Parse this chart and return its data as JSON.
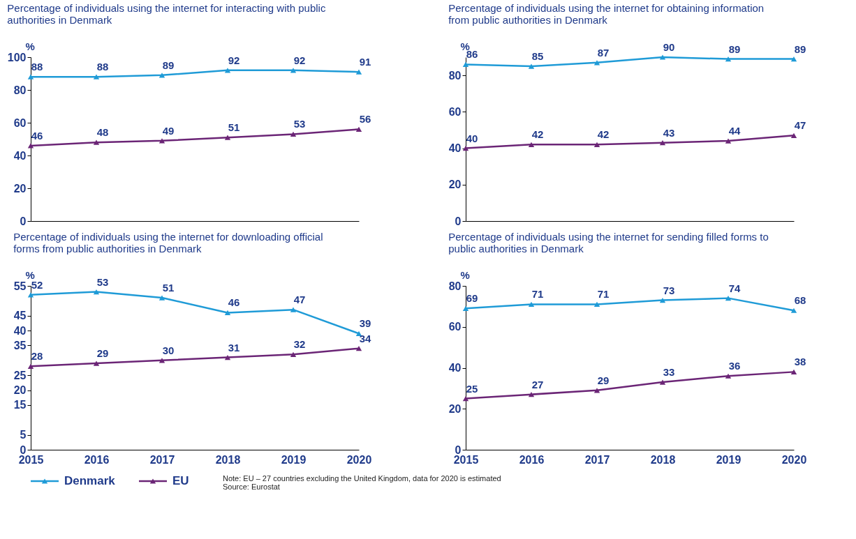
{
  "chart_data": [
    {
      "type": "line",
      "title": "Percentage of individuals using the internet for interacting with public authorities in Denmark",
      "ylabel": "%",
      "categories": [
        "2015",
        "2016",
        "2017",
        "2018",
        "2019",
        "2020"
      ],
      "ylim": [
        0,
        100
      ],
      "yticks": [
        0,
        20,
        40,
        60,
        80,
        100
      ],
      "tick_labels": "y",
      "marker": "triangle",
      "line_style": "solid",
      "data_labels": true,
      "grid": false,
      "legend": "bottom left",
      "series": [
        {
          "name": "Denmark",
          "color": "#1f9bd7",
          "values": [
            88,
            88,
            89,
            92,
            92,
            91
          ]
        },
        {
          "name": "EU",
          "color": "#6b2576",
          "values": [
            46,
            48,
            49,
            51,
            53,
            56
          ]
        }
      ]
    },
    {
      "type": "line",
      "title": "Percentage of individuals using the internet for obtaining information from public authorities in Denmark",
      "ylabel": "%",
      "categories": [
        "2015",
        "2016",
        "2017",
        "2018",
        "2019",
        "2020"
      ],
      "ylim": [
        0,
        90
      ],
      "yticks": [
        0,
        20,
        40,
        60,
        80
      ],
      "tick_labels": "y",
      "marker": "triangle",
      "line_style": "solid",
      "data_labels": true,
      "grid": false,
      "series": [
        {
          "name": "Denmark",
          "color": "#1f9bd7",
          "values": [
            86,
            85,
            87,
            90,
            89,
            89
          ]
        },
        {
          "name": "EU",
          "color": "#6b2576",
          "values": [
            40,
            42,
            42,
            43,
            44,
            47
          ]
        }
      ]
    },
    {
      "type": "line",
      "title": "Percentage of individuals using the internet for downloading official forms from public authorities in Denmark",
      "ylabel": "%",
      "categories": [
        "2015",
        "2016",
        "2017",
        "2018",
        "2019",
        "2020"
      ],
      "ylim": [
        0,
        55
      ],
      "yticks": [
        0,
        5,
        15,
        20,
        25,
        35,
        40,
        45,
        55
      ],
      "marker": "triangle",
      "line_style": "solid",
      "data_labels": true,
      "grid": false,
      "series": [
        {
          "name": "Denmark",
          "color": "#1f9bd7",
          "values": [
            52,
            53,
            51,
            46,
            47,
            39
          ]
        },
        {
          "name": "EU",
          "color": "#6b2576",
          "values": [
            28,
            29,
            30,
            31,
            32,
            34
          ]
        }
      ]
    },
    {
      "type": "line",
      "title": "Percentage of individuals using the internet for sending filled forms to public authorities in Denmark",
      "ylabel": "%",
      "categories": [
        "2015",
        "2016",
        "2017",
        "2018",
        "2019",
        "2020"
      ],
      "ylim": [
        0,
        80
      ],
      "yticks": [
        0,
        20,
        40,
        60,
        80
      ],
      "marker": "triangle",
      "line_style": "solid",
      "data_labels": true,
      "grid": false,
      "annotations": [
        "Note: EU – 27 countries excluding the United Kingdom, data for 2020 is estimated",
        "Source: Eurostat"
      ],
      "series": [
        {
          "name": "Denmark",
          "color": "#1f9bd7",
          "values": [
            69,
            71,
            71,
            73,
            74,
            68
          ]
        },
        {
          "name": "EU",
          "color": "#6b2576",
          "values": [
            25,
            27,
            29,
            33,
            36,
            38
          ]
        }
      ]
    }
  ]
}
